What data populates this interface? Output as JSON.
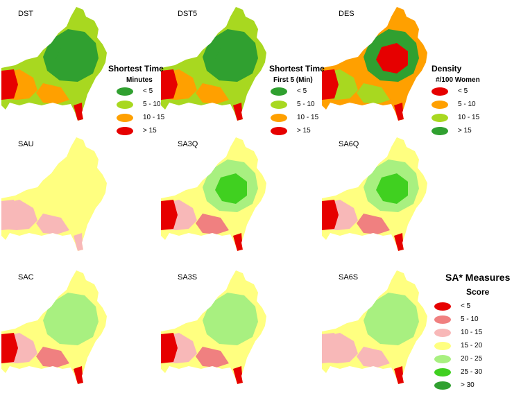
{
  "colors": {
    "red": "#e60000",
    "salmon": "#f08080",
    "pink": "#f8b8b8",
    "yellow": "#ffff80",
    "light_green": "#a8f080",
    "mid_green": "#40d020",
    "dark_green": "#30a030",
    "yg": "#a8d820",
    "orange": "#ffa000",
    "boundary": "#000000"
  },
  "maps": [
    {
      "id": "DST",
      "label": "DST",
      "base": "yg",
      "zones": [
        "dark_green",
        "dark_green",
        "orange",
        "orange",
        "red",
        "red"
      ]
    },
    {
      "id": "DST5",
      "label": "DST5",
      "base": "yg",
      "zones": [
        "dark_green",
        "dark_green",
        "orange",
        "orange",
        "red",
        "red"
      ]
    },
    {
      "id": "DES",
      "label": "DES",
      "base": "orange",
      "zones": [
        "dark_green",
        "red",
        "yg",
        "yg",
        "red",
        "red"
      ]
    },
    {
      "id": "SAU",
      "label": "SAU",
      "base": "yellow",
      "zones": [
        "yellow",
        "yellow",
        "pink",
        "pink",
        "pink",
        "pink"
      ]
    },
    {
      "id": "SA3Q",
      "label": "SA3Q",
      "base": "yellow",
      "zones": [
        "light_green",
        "mid_green",
        "pink",
        "salmon",
        "red",
        "red"
      ]
    },
    {
      "id": "SA6Q",
      "label": "SA6Q",
      "base": "yellow",
      "zones": [
        "light_green",
        "mid_green",
        "pink",
        "salmon",
        "red",
        "red"
      ]
    },
    {
      "id": "SAC",
      "label": "SAC",
      "base": "yellow",
      "zones": [
        "light_green",
        "light_green",
        "pink",
        "salmon",
        "red",
        "red"
      ]
    },
    {
      "id": "SA3S",
      "label": "SA3S",
      "base": "yellow",
      "zones": [
        "light_green",
        "light_green",
        "pink",
        "salmon",
        "red",
        "red"
      ]
    },
    {
      "id": "SA6S",
      "label": "SA6S",
      "base": "yellow",
      "zones": [
        "light_green",
        "light_green",
        "pink",
        "pink",
        "pink",
        "red"
      ]
    }
  ],
  "legend_shortest_time": {
    "title": "Shortest Time",
    "subtitle": "Minutes",
    "items": [
      {
        "label": "< 5",
        "color": "dark_green"
      },
      {
        "label": "5 - 10",
        "color": "yg"
      },
      {
        "label": "10 - 15",
        "color": "orange"
      },
      {
        "label": "> 15",
        "color": "red"
      }
    ]
  },
  "legend_first5": {
    "title": "Shortest Time",
    "subtitle": "First 5 (Min)",
    "items": [
      {
        "label": "< 5",
        "color": "dark_green"
      },
      {
        "label": "5 - 10",
        "color": "yg"
      },
      {
        "label": "10 - 15",
        "color": "orange"
      },
      {
        "label": "> 15",
        "color": "red"
      }
    ]
  },
  "legend_density": {
    "title": "Density",
    "subtitle": "#/100 Women",
    "items": [
      {
        "label": "< 5",
        "color": "red"
      },
      {
        "label": "5 - 10",
        "color": "orange"
      },
      {
        "label": "10 - 15",
        "color": "yg"
      },
      {
        "label": "> 15",
        "color": "dark_green"
      }
    ]
  },
  "legend_sa": {
    "title": "SA* Measures",
    "subtitle": "Score",
    "items": [
      {
        "label": "< 5",
        "color": "red"
      },
      {
        "label": "5 - 10",
        "color": "salmon"
      },
      {
        "label": "10 - 15",
        "color": "pink"
      },
      {
        "label": "15 - 20",
        "color": "yellow"
      },
      {
        "label": "20 - 25",
        "color": "light_green"
      },
      {
        "label": "25 - 30",
        "color": "mid_green"
      },
      {
        "label": "> 30",
        "color": "dark_green"
      }
    ]
  }
}
